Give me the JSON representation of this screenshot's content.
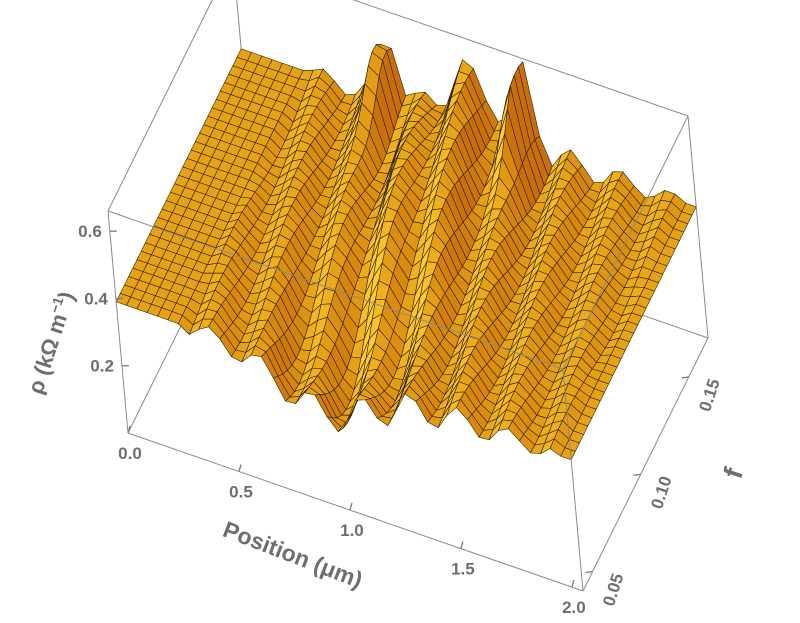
{
  "chart_data": {
    "type": "surface3d",
    "title": "",
    "axes": {
      "x": {
        "label": "Position (μm)",
        "range": [
          0.0,
          2.05
        ],
        "ticks": [
          0.0,
          0.5,
          1.0,
          1.5,
          2.0
        ],
        "tick_labels": [
          "0.0",
          "0.5",
          "1.0",
          "1.5",
          "2.0"
        ]
      },
      "y": {
        "label": "f",
        "range": [
          0.04,
          0.17
        ],
        "ticks": [
          0.05,
          0.1,
          0.15
        ],
        "tick_labels": [
          "0.05",
          "0.10",
          "0.15"
        ]
      },
      "z": {
        "label_main": "ρ (kΩ m",
        "label_exponent": "−1",
        "label_close": ")",
        "range": [
          0.0,
          0.66
        ],
        "ticks": [
          0.2,
          0.4,
          0.6
        ],
        "tick_labels": [
          "0.2",
          "0.4",
          "0.6"
        ]
      }
    },
    "surface": {
      "color": "#f5a412",
      "mesh_color": "#2a1700",
      "baseline": 0.39,
      "features": [
        {
          "kind": "barrier_ridge",
          "x": 1.05,
          "f_range": [
            0.04,
            0.17
          ],
          "peak_rho": 0.55,
          "note": "arch between two domain walls"
        },
        {
          "kind": "spike",
          "x": 0.68,
          "f": 0.165,
          "peak_rho": 0.64
        },
        {
          "kind": "spike",
          "x": 1.3,
          "f": 0.165,
          "peak_rho": 0.64
        },
        {
          "kind": "trough",
          "x": 0.95,
          "f": 0.06,
          "min_rho": 0.18
        },
        {
          "kind": "oscillations",
          "x_range": [
            0.3,
            2.0
          ],
          "amplitude": 0.05
        }
      ],
      "grid_lines": "mesh"
    },
    "box": true,
    "grid": false,
    "legend": "none"
  }
}
